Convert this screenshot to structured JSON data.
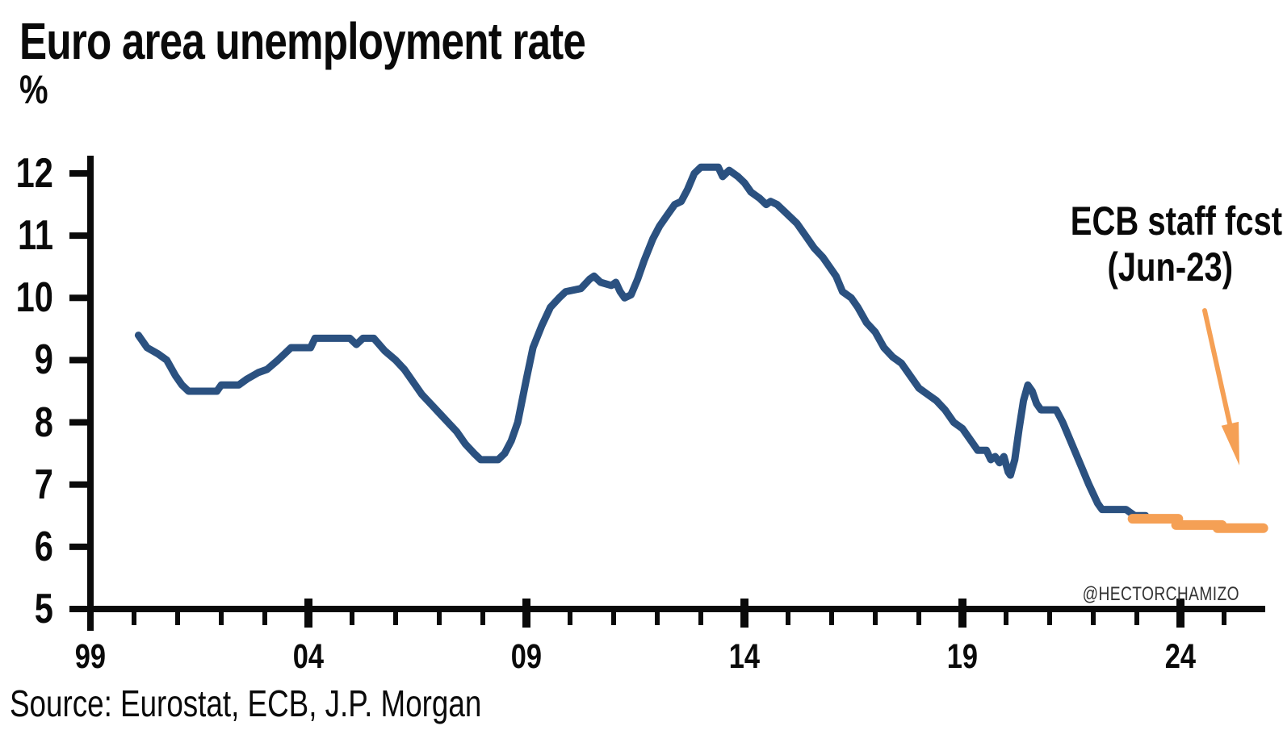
{
  "title": "Euro area unemployment rate",
  "unit_label": "%",
  "source_note": "Source: Eurostat, ECB, J.P. Morgan",
  "watermark": "@HECTORCHAMIZO",
  "annotation": {
    "line1": "ECB staff fcst",
    "line2": "(Jun-23)"
  },
  "colors": {
    "history_line": "#2B5180",
    "forecast": "#F5A055",
    "axis": "#0A0A0A",
    "text": "#0A0A0A",
    "watermark": "#333333"
  },
  "chart_data": {
    "type": "line",
    "title": "Euro area unemployment rate",
    "ylabel": "%",
    "xlabel": "",
    "grid": false,
    "legend_position": "none",
    "ylim": [
      5,
      12
    ],
    "yticks": [
      12,
      11,
      10,
      9,
      8,
      7,
      6,
      5
    ],
    "xlim": [
      1999,
      2025.9
    ],
    "xticks_major": [
      {
        "year": 1999,
        "label": "99"
      },
      {
        "year": 2004,
        "label": "04"
      },
      {
        "year": 2009,
        "label": "09"
      },
      {
        "year": 2014,
        "label": "14"
      },
      {
        "year": 2019,
        "label": "19"
      },
      {
        "year": 2024,
        "label": "24"
      }
    ],
    "xticks_minor_years": [
      2000,
      2001,
      2002,
      2003,
      2005,
      2006,
      2007,
      2008,
      2010,
      2011,
      2012,
      2013,
      2015,
      2016,
      2017,
      2018,
      2020,
      2021,
      2022,
      2023,
      2025
    ],
    "series": [
      {
        "name": "Euro area unemployment rate (history)",
        "style": "solid",
        "color_key": "history_line",
        "points": [
          [
            2000.1,
            9.4
          ],
          [
            2000.3,
            9.2
          ],
          [
            2000.55,
            9.1
          ],
          [
            2000.75,
            9.0
          ],
          [
            2000.95,
            8.75
          ],
          [
            2001.1,
            8.6
          ],
          [
            2001.25,
            8.5
          ],
          [
            2001.9,
            8.5
          ],
          [
            2002.0,
            8.6
          ],
          [
            2002.4,
            8.6
          ],
          [
            2002.6,
            8.7
          ],
          [
            2002.85,
            8.8
          ],
          [
            2003.05,
            8.85
          ],
          [
            2003.3,
            9.0
          ],
          [
            2003.45,
            9.1
          ],
          [
            2003.6,
            9.2
          ],
          [
            2004.05,
            9.2
          ],
          [
            2004.15,
            9.35
          ],
          [
            2004.95,
            9.35
          ],
          [
            2005.1,
            9.25
          ],
          [
            2005.25,
            9.35
          ],
          [
            2005.5,
            9.35
          ],
          [
            2005.75,
            9.15
          ],
          [
            2006.0,
            9.0
          ],
          [
            2006.2,
            8.85
          ],
          [
            2006.4,
            8.65
          ],
          [
            2006.6,
            8.45
          ],
          [
            2006.8,
            8.3
          ],
          [
            2007.0,
            8.15
          ],
          [
            2007.2,
            8.0
          ],
          [
            2007.4,
            7.85
          ],
          [
            2007.6,
            7.65
          ],
          [
            2007.8,
            7.5
          ],
          [
            2007.95,
            7.4
          ],
          [
            2008.35,
            7.4
          ],
          [
            2008.5,
            7.5
          ],
          [
            2008.65,
            7.7
          ],
          [
            2008.8,
            8.0
          ],
          [
            2009.0,
            8.7
          ],
          [
            2009.15,
            9.2
          ],
          [
            2009.35,
            9.55
          ],
          [
            2009.55,
            9.85
          ],
          [
            2009.75,
            10.0
          ],
          [
            2009.9,
            10.1
          ],
          [
            2010.25,
            10.15
          ],
          [
            2010.45,
            10.3
          ],
          [
            2010.55,
            10.35
          ],
          [
            2010.7,
            10.25
          ],
          [
            2010.95,
            10.2
          ],
          [
            2011.05,
            10.25
          ],
          [
            2011.15,
            10.1
          ],
          [
            2011.25,
            10.0
          ],
          [
            2011.4,
            10.05
          ],
          [
            2011.55,
            10.3
          ],
          [
            2011.7,
            10.6
          ],
          [
            2011.9,
            10.95
          ],
          [
            2012.05,
            11.15
          ],
          [
            2012.25,
            11.35
          ],
          [
            2012.4,
            11.5
          ],
          [
            2012.55,
            11.55
          ],
          [
            2012.7,
            11.75
          ],
          [
            2012.85,
            12.0
          ],
          [
            2013.0,
            12.1
          ],
          [
            2013.4,
            12.1
          ],
          [
            2013.5,
            11.95
          ],
          [
            2013.65,
            12.05
          ],
          [
            2013.85,
            11.95
          ],
          [
            2014.0,
            11.85
          ],
          [
            2014.15,
            11.7
          ],
          [
            2014.35,
            11.6
          ],
          [
            2014.5,
            11.5
          ],
          [
            2014.6,
            11.55
          ],
          [
            2014.75,
            11.5
          ],
          [
            2014.9,
            11.4
          ],
          [
            2015.05,
            11.3
          ],
          [
            2015.2,
            11.2
          ],
          [
            2015.4,
            11.0
          ],
          [
            2015.6,
            10.8
          ],
          [
            2015.8,
            10.65
          ],
          [
            2015.95,
            10.5
          ],
          [
            2016.1,
            10.35
          ],
          [
            2016.25,
            10.1
          ],
          [
            2016.45,
            10.0
          ],
          [
            2016.6,
            9.85
          ],
          [
            2016.8,
            9.6
          ],
          [
            2017.0,
            9.45
          ],
          [
            2017.2,
            9.2
          ],
          [
            2017.4,
            9.05
          ],
          [
            2017.6,
            8.95
          ],
          [
            2017.8,
            8.75
          ],
          [
            2018.0,
            8.55
          ],
          [
            2018.2,
            8.45
          ],
          [
            2018.4,
            8.35
          ],
          [
            2018.6,
            8.2
          ],
          [
            2018.8,
            8.0
          ],
          [
            2019.0,
            7.9
          ],
          [
            2019.2,
            7.7
          ],
          [
            2019.35,
            7.55
          ],
          [
            2019.55,
            7.55
          ],
          [
            2019.65,
            7.4
          ],
          [
            2019.75,
            7.45
          ],
          [
            2019.85,
            7.35
          ],
          [
            2019.95,
            7.45
          ],
          [
            2020.05,
            7.2
          ],
          [
            2020.1,
            7.15
          ],
          [
            2020.2,
            7.4
          ],
          [
            2020.3,
            7.9
          ],
          [
            2020.4,
            8.35
          ],
          [
            2020.5,
            8.6
          ],
          [
            2020.6,
            8.5
          ],
          [
            2020.7,
            8.3
          ],
          [
            2020.8,
            8.2
          ],
          [
            2021.15,
            8.2
          ],
          [
            2021.3,
            8.0
          ],
          [
            2021.45,
            7.75
          ],
          [
            2021.6,
            7.5
          ],
          [
            2021.75,
            7.25
          ],
          [
            2021.9,
            7.0
          ],
          [
            2022.0,
            6.85
          ],
          [
            2022.1,
            6.7
          ],
          [
            2022.2,
            6.6
          ],
          [
            2022.75,
            6.6
          ],
          [
            2022.85,
            6.55
          ],
          [
            2022.95,
            6.5
          ],
          [
            2023.2,
            6.5
          ]
        ]
      },
      {
        "name": "ECB staff fcst (Jun-23)",
        "style": "dashed-segments",
        "color_key": "forecast",
        "segments": [
          {
            "from_year": 2022.9,
            "to_year": 2023.95,
            "value": 6.45
          },
          {
            "from_year": 2023.9,
            "to_year": 2024.95,
            "value": 6.35
          },
          {
            "from_year": 2024.85,
            "to_year": 2025.9,
            "value": 6.3
          }
        ]
      }
    ]
  }
}
